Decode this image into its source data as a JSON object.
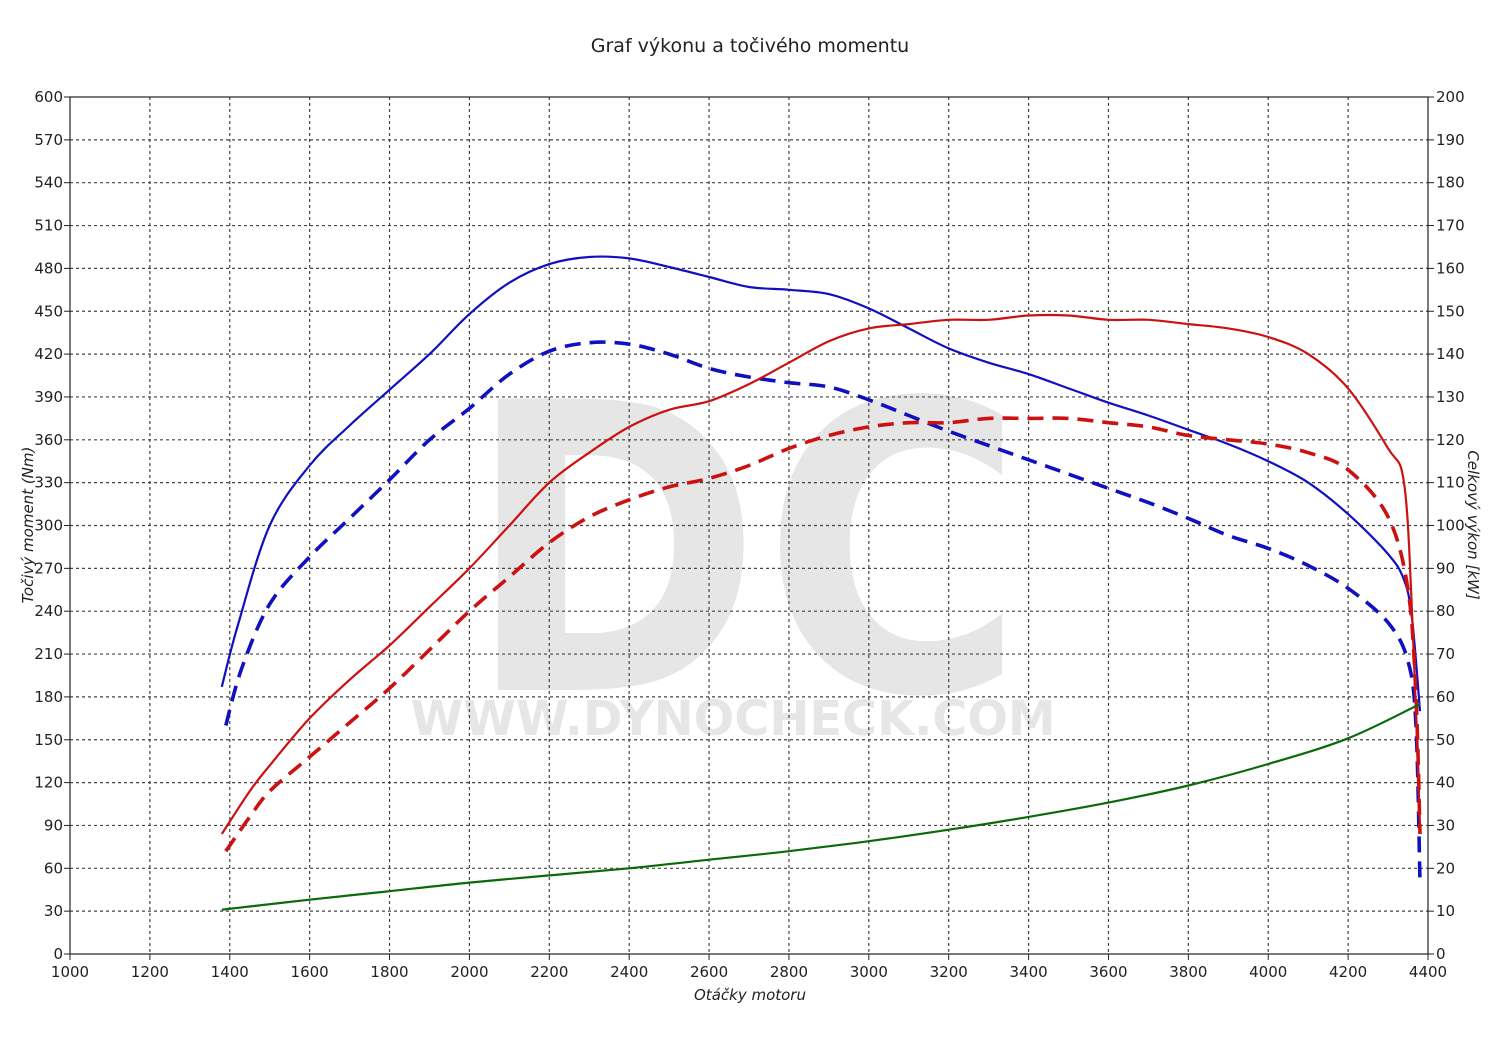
{
  "chart_data": {
    "type": "line",
    "title": "Graf výkonu a točivého momentu",
    "xlabel": "Otáčky motoru",
    "ylabel_left": "Točivý moment (Nm)",
    "ylabel_right": "Celkový výkon [kW]",
    "xlim": [
      1000,
      4400
    ],
    "ylim_left": [
      0,
      600
    ],
    "ylim_right": [
      0,
      200
    ],
    "x_ticks": [
      1000,
      1200,
      1400,
      1600,
      1800,
      2000,
      2200,
      2400,
      2600,
      2800,
      3000,
      3200,
      3400,
      3600,
      3800,
      4000,
      4200,
      4400
    ],
    "y_ticks_left": [
      0,
      30,
      60,
      90,
      120,
      150,
      180,
      210,
      240,
      270,
      300,
      330,
      360,
      390,
      420,
      450,
      480,
      510,
      540,
      570,
      600
    ],
    "y_ticks_right": [
      0,
      10,
      20,
      30,
      40,
      50,
      60,
      70,
      80,
      90,
      100,
      110,
      120,
      130,
      140,
      150,
      160,
      170,
      180,
      190,
      200
    ],
    "grid": true,
    "watermark": {
      "logo": "DC",
      "url": "WWW.DYNOCHECK.COM"
    },
    "series": [
      {
        "axis": "left",
        "color": "#1010c0",
        "style": "solid",
        "points": [
          [
            1380,
            187
          ],
          [
            1420,
            230
          ],
          [
            1500,
            300
          ],
          [
            1600,
            342
          ],
          [
            1700,
            370
          ],
          [
            1800,
            395
          ],
          [
            1900,
            420
          ],
          [
            2000,
            448
          ],
          [
            2100,
            470
          ],
          [
            2200,
            483
          ],
          [
            2300,
            488
          ],
          [
            2400,
            487
          ],
          [
            2500,
            481
          ],
          [
            2600,
            474
          ],
          [
            2700,
            467
          ],
          [
            2800,
            465
          ],
          [
            2900,
            462
          ],
          [
            3000,
            452
          ],
          [
            3100,
            438
          ],
          [
            3200,
            424
          ],
          [
            3300,
            414
          ],
          [
            3400,
            406
          ],
          [
            3500,
            396
          ],
          [
            3600,
            386
          ],
          [
            3700,
            377
          ],
          [
            3800,
            367
          ],
          [
            3900,
            357
          ],
          [
            4000,
            345
          ],
          [
            4100,
            330
          ],
          [
            4200,
            308
          ],
          [
            4300,
            280
          ],
          [
            4340,
            262
          ],
          [
            4360,
            235
          ],
          [
            4380,
            170
          ]
        ]
      },
      {
        "axis": "left",
        "color": "#1010c0",
        "style": "dashed",
        "points": [
          [
            1390,
            160
          ],
          [
            1430,
            200
          ],
          [
            1500,
            245
          ],
          [
            1600,
            278
          ],
          [
            1700,
            305
          ],
          [
            1800,
            332
          ],
          [
            1900,
            360
          ],
          [
            2000,
            382
          ],
          [
            2100,
            406
          ],
          [
            2200,
            422
          ],
          [
            2300,
            428
          ],
          [
            2400,
            427
          ],
          [
            2500,
            420
          ],
          [
            2600,
            410
          ],
          [
            2700,
            404
          ],
          [
            2800,
            400
          ],
          [
            2900,
            397
          ],
          [
            3000,
            388
          ],
          [
            3100,
            377
          ],
          [
            3200,
            366
          ],
          [
            3300,
            356
          ],
          [
            3400,
            346
          ],
          [
            3500,
            336
          ],
          [
            3600,
            326
          ],
          [
            3700,
            316
          ],
          [
            3800,
            305
          ],
          [
            3900,
            293
          ],
          [
            4000,
            284
          ],
          [
            4100,
            272
          ],
          [
            4200,
            256
          ],
          [
            4300,
            232
          ],
          [
            4350,
            205
          ],
          [
            4370,
            160
          ],
          [
            4380,
            50
          ]
        ]
      },
      {
        "axis": "right",
        "color": "#cc1111",
        "style": "solid",
        "points": [
          [
            1380,
            28
          ],
          [
            1450,
            38
          ],
          [
            1500,
            44
          ],
          [
            1600,
            55
          ],
          [
            1700,
            64
          ],
          [
            1800,
            72
          ],
          [
            1900,
            81
          ],
          [
            2000,
            90
          ],
          [
            2100,
            100
          ],
          [
            2200,
            110
          ],
          [
            2300,
            117
          ],
          [
            2400,
            123
          ],
          [
            2500,
            127
          ],
          [
            2600,
            129
          ],
          [
            2700,
            133
          ],
          [
            2800,
            138
          ],
          [
            2900,
            143
          ],
          [
            3000,
            146
          ],
          [
            3100,
            147
          ],
          [
            3200,
            148
          ],
          [
            3300,
            148
          ],
          [
            3400,
            149
          ],
          [
            3500,
            149
          ],
          [
            3600,
            148
          ],
          [
            3700,
            148
          ],
          [
            3800,
            147
          ],
          [
            3900,
            146
          ],
          [
            4000,
            144
          ],
          [
            4100,
            140
          ],
          [
            4200,
            132
          ],
          [
            4300,
            118
          ],
          [
            4340,
            110
          ],
          [
            4360,
            80
          ],
          [
            4380,
            30
          ]
        ]
      },
      {
        "axis": "right",
        "color": "#cc1111",
        "style": "dashed",
        "points": [
          [
            1390,
            24
          ],
          [
            1450,
            32
          ],
          [
            1500,
            38
          ],
          [
            1600,
            46
          ],
          [
            1700,
            54
          ],
          [
            1800,
            62
          ],
          [
            1900,
            71
          ],
          [
            2000,
            80
          ],
          [
            2100,
            88
          ],
          [
            2200,
            96
          ],
          [
            2300,
            102
          ],
          [
            2400,
            106
          ],
          [
            2500,
            109
          ],
          [
            2600,
            111
          ],
          [
            2700,
            114
          ],
          [
            2800,
            118
          ],
          [
            2900,
            121
          ],
          [
            3000,
            123
          ],
          [
            3100,
            124
          ],
          [
            3200,
            124
          ],
          [
            3300,
            125
          ],
          [
            3400,
            125
          ],
          [
            3500,
            125
          ],
          [
            3600,
            124
          ],
          [
            3700,
            123
          ],
          [
            3800,
            121
          ],
          [
            3900,
            120
          ],
          [
            4000,
            119
          ],
          [
            4100,
            117
          ],
          [
            4200,
            113
          ],
          [
            4300,
            102
          ],
          [
            4350,
            85
          ],
          [
            4370,
            60
          ],
          [
            4380,
            28
          ]
        ]
      },
      {
        "axis": "left",
        "color": "#0a6a0a",
        "style": "solid",
        "points": [
          [
            1380,
            31
          ],
          [
            1600,
            38
          ],
          [
            1800,
            44
          ],
          [
            2000,
            50
          ],
          [
            2200,
            55
          ],
          [
            2400,
            60
          ],
          [
            2600,
            66
          ],
          [
            2800,
            72
          ],
          [
            3000,
            79
          ],
          [
            3200,
            87
          ],
          [
            3400,
            96
          ],
          [
            3600,
            106
          ],
          [
            3800,
            118
          ],
          [
            4000,
            133
          ],
          [
            4200,
            151
          ],
          [
            4380,
            175
          ]
        ]
      }
    ]
  }
}
